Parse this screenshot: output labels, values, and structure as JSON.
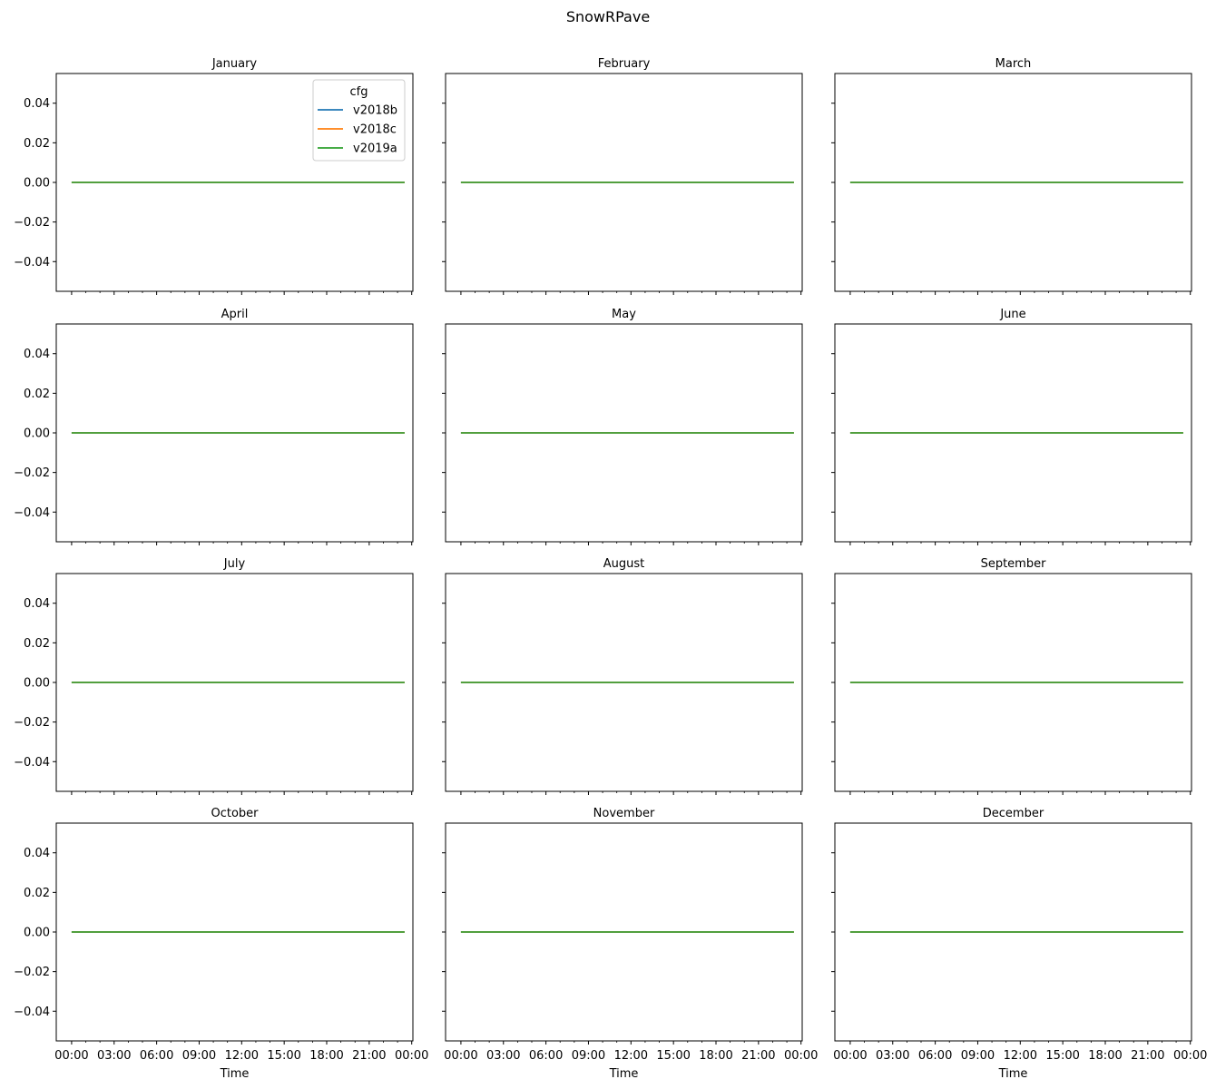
{
  "title": "SnowRPave",
  "chart_data": {
    "type": "line",
    "layout": {
      "rows": 4,
      "cols": 3,
      "sharex": true,
      "sharey": true
    },
    "x": [
      "00:00",
      "00:30",
      "01:00",
      "01:30",
      "02:00",
      "02:30",
      "03:00",
      "03:30",
      "04:00",
      "04:30",
      "05:00",
      "05:30",
      "06:00",
      "06:30",
      "07:00",
      "07:30",
      "08:00",
      "08:30",
      "09:00",
      "09:30",
      "10:00",
      "10:30",
      "11:00",
      "11:30",
      "12:00",
      "12:30",
      "13:00",
      "13:30",
      "14:00",
      "14:30",
      "15:00",
      "15:30",
      "16:00",
      "16:30",
      "17:00",
      "17:30",
      "18:00",
      "18:30",
      "19:00",
      "19:30",
      "20:00",
      "20:30",
      "21:00",
      "21:30",
      "22:00",
      "22:30",
      "23:00",
      "23:30"
    ],
    "xlabel": "Time",
    "xlim": [
      "-01:05",
      "24:05"
    ],
    "x_major_ticks": [
      "00:00",
      "03:00",
      "06:00",
      "09:00",
      "12:00",
      "15:00",
      "18:00",
      "21:00",
      "00:00"
    ],
    "x_minor_ticks": [
      "01:00",
      "02:00",
      "04:00",
      "05:00",
      "07:00",
      "08:00",
      "10:00",
      "11:00",
      "13:00",
      "14:00",
      "16:00",
      "17:00",
      "19:00",
      "20:00",
      "22:00",
      "23:00"
    ],
    "ylabel": "",
    "ylim": [
      -0.055,
      0.055
    ],
    "yticks": [
      -0.04,
      -0.02,
      0.0,
      0.02,
      0.04
    ],
    "ytick_labels": [
      "−0.04",
      "−0.02",
      "0.00",
      "0.02",
      "0.04"
    ],
    "grid": false,
    "legend": {
      "title": "cfg",
      "placement": "upper right",
      "panel": "January",
      "entries": [
        "v2018b",
        "v2018c",
        "v2019a"
      ]
    },
    "series_styles": [
      {
        "name": "v2018b",
        "color": "#1f77b4"
      },
      {
        "name": "v2018c",
        "color": "#ff7f0e"
      },
      {
        "name": "v2019a",
        "color": "#2ca02c"
      }
    ],
    "panels": [
      {
        "title": "January",
        "series": [
          {
            "name": "v2018b",
            "constant": 0.0
          },
          {
            "name": "v2018c",
            "constant": 0.0
          },
          {
            "name": "v2019a",
            "constant": 0.0
          }
        ]
      },
      {
        "title": "February",
        "series": [
          {
            "name": "v2018b",
            "constant": 0.0
          },
          {
            "name": "v2018c",
            "constant": 0.0
          },
          {
            "name": "v2019a",
            "constant": 0.0
          }
        ]
      },
      {
        "title": "March",
        "series": [
          {
            "name": "v2018b",
            "constant": 0.0
          },
          {
            "name": "v2018c",
            "constant": 0.0
          },
          {
            "name": "v2019a",
            "constant": 0.0
          }
        ]
      },
      {
        "title": "April",
        "series": [
          {
            "name": "v2018b",
            "constant": 0.0
          },
          {
            "name": "v2018c",
            "constant": 0.0
          },
          {
            "name": "v2019a",
            "constant": 0.0
          }
        ]
      },
      {
        "title": "May",
        "series": [
          {
            "name": "v2018b",
            "constant": 0.0
          },
          {
            "name": "v2018c",
            "constant": 0.0
          },
          {
            "name": "v2019a",
            "constant": 0.0
          }
        ]
      },
      {
        "title": "June",
        "series": [
          {
            "name": "v2018b",
            "constant": 0.0
          },
          {
            "name": "v2018c",
            "constant": 0.0
          },
          {
            "name": "v2019a",
            "constant": 0.0
          }
        ]
      },
      {
        "title": "July",
        "series": [
          {
            "name": "v2018b",
            "constant": 0.0
          },
          {
            "name": "v2018c",
            "constant": 0.0
          },
          {
            "name": "v2019a",
            "constant": 0.0
          }
        ]
      },
      {
        "title": "August",
        "series": [
          {
            "name": "v2018b",
            "constant": 0.0
          },
          {
            "name": "v2018c",
            "constant": 0.0
          },
          {
            "name": "v2019a",
            "constant": 0.0
          }
        ]
      },
      {
        "title": "September",
        "series": [
          {
            "name": "v2018b",
            "constant": 0.0
          },
          {
            "name": "v2018c",
            "constant": 0.0
          },
          {
            "name": "v2019a",
            "constant": 0.0
          }
        ]
      },
      {
        "title": "October",
        "series": [
          {
            "name": "v2018b",
            "constant": 0.0
          },
          {
            "name": "v2018c",
            "constant": 0.0
          },
          {
            "name": "v2019a",
            "constant": 0.0
          }
        ]
      },
      {
        "title": "November",
        "series": [
          {
            "name": "v2018b",
            "constant": 0.0
          },
          {
            "name": "v2018c",
            "constant": 0.0
          },
          {
            "name": "v2019a",
            "constant": 0.0
          }
        ]
      },
      {
        "title": "December",
        "series": [
          {
            "name": "v2018b",
            "constant": 0.0
          },
          {
            "name": "v2018c",
            "constant": 0.0
          },
          {
            "name": "v2019a",
            "constant": 0.0
          }
        ]
      }
    ]
  }
}
